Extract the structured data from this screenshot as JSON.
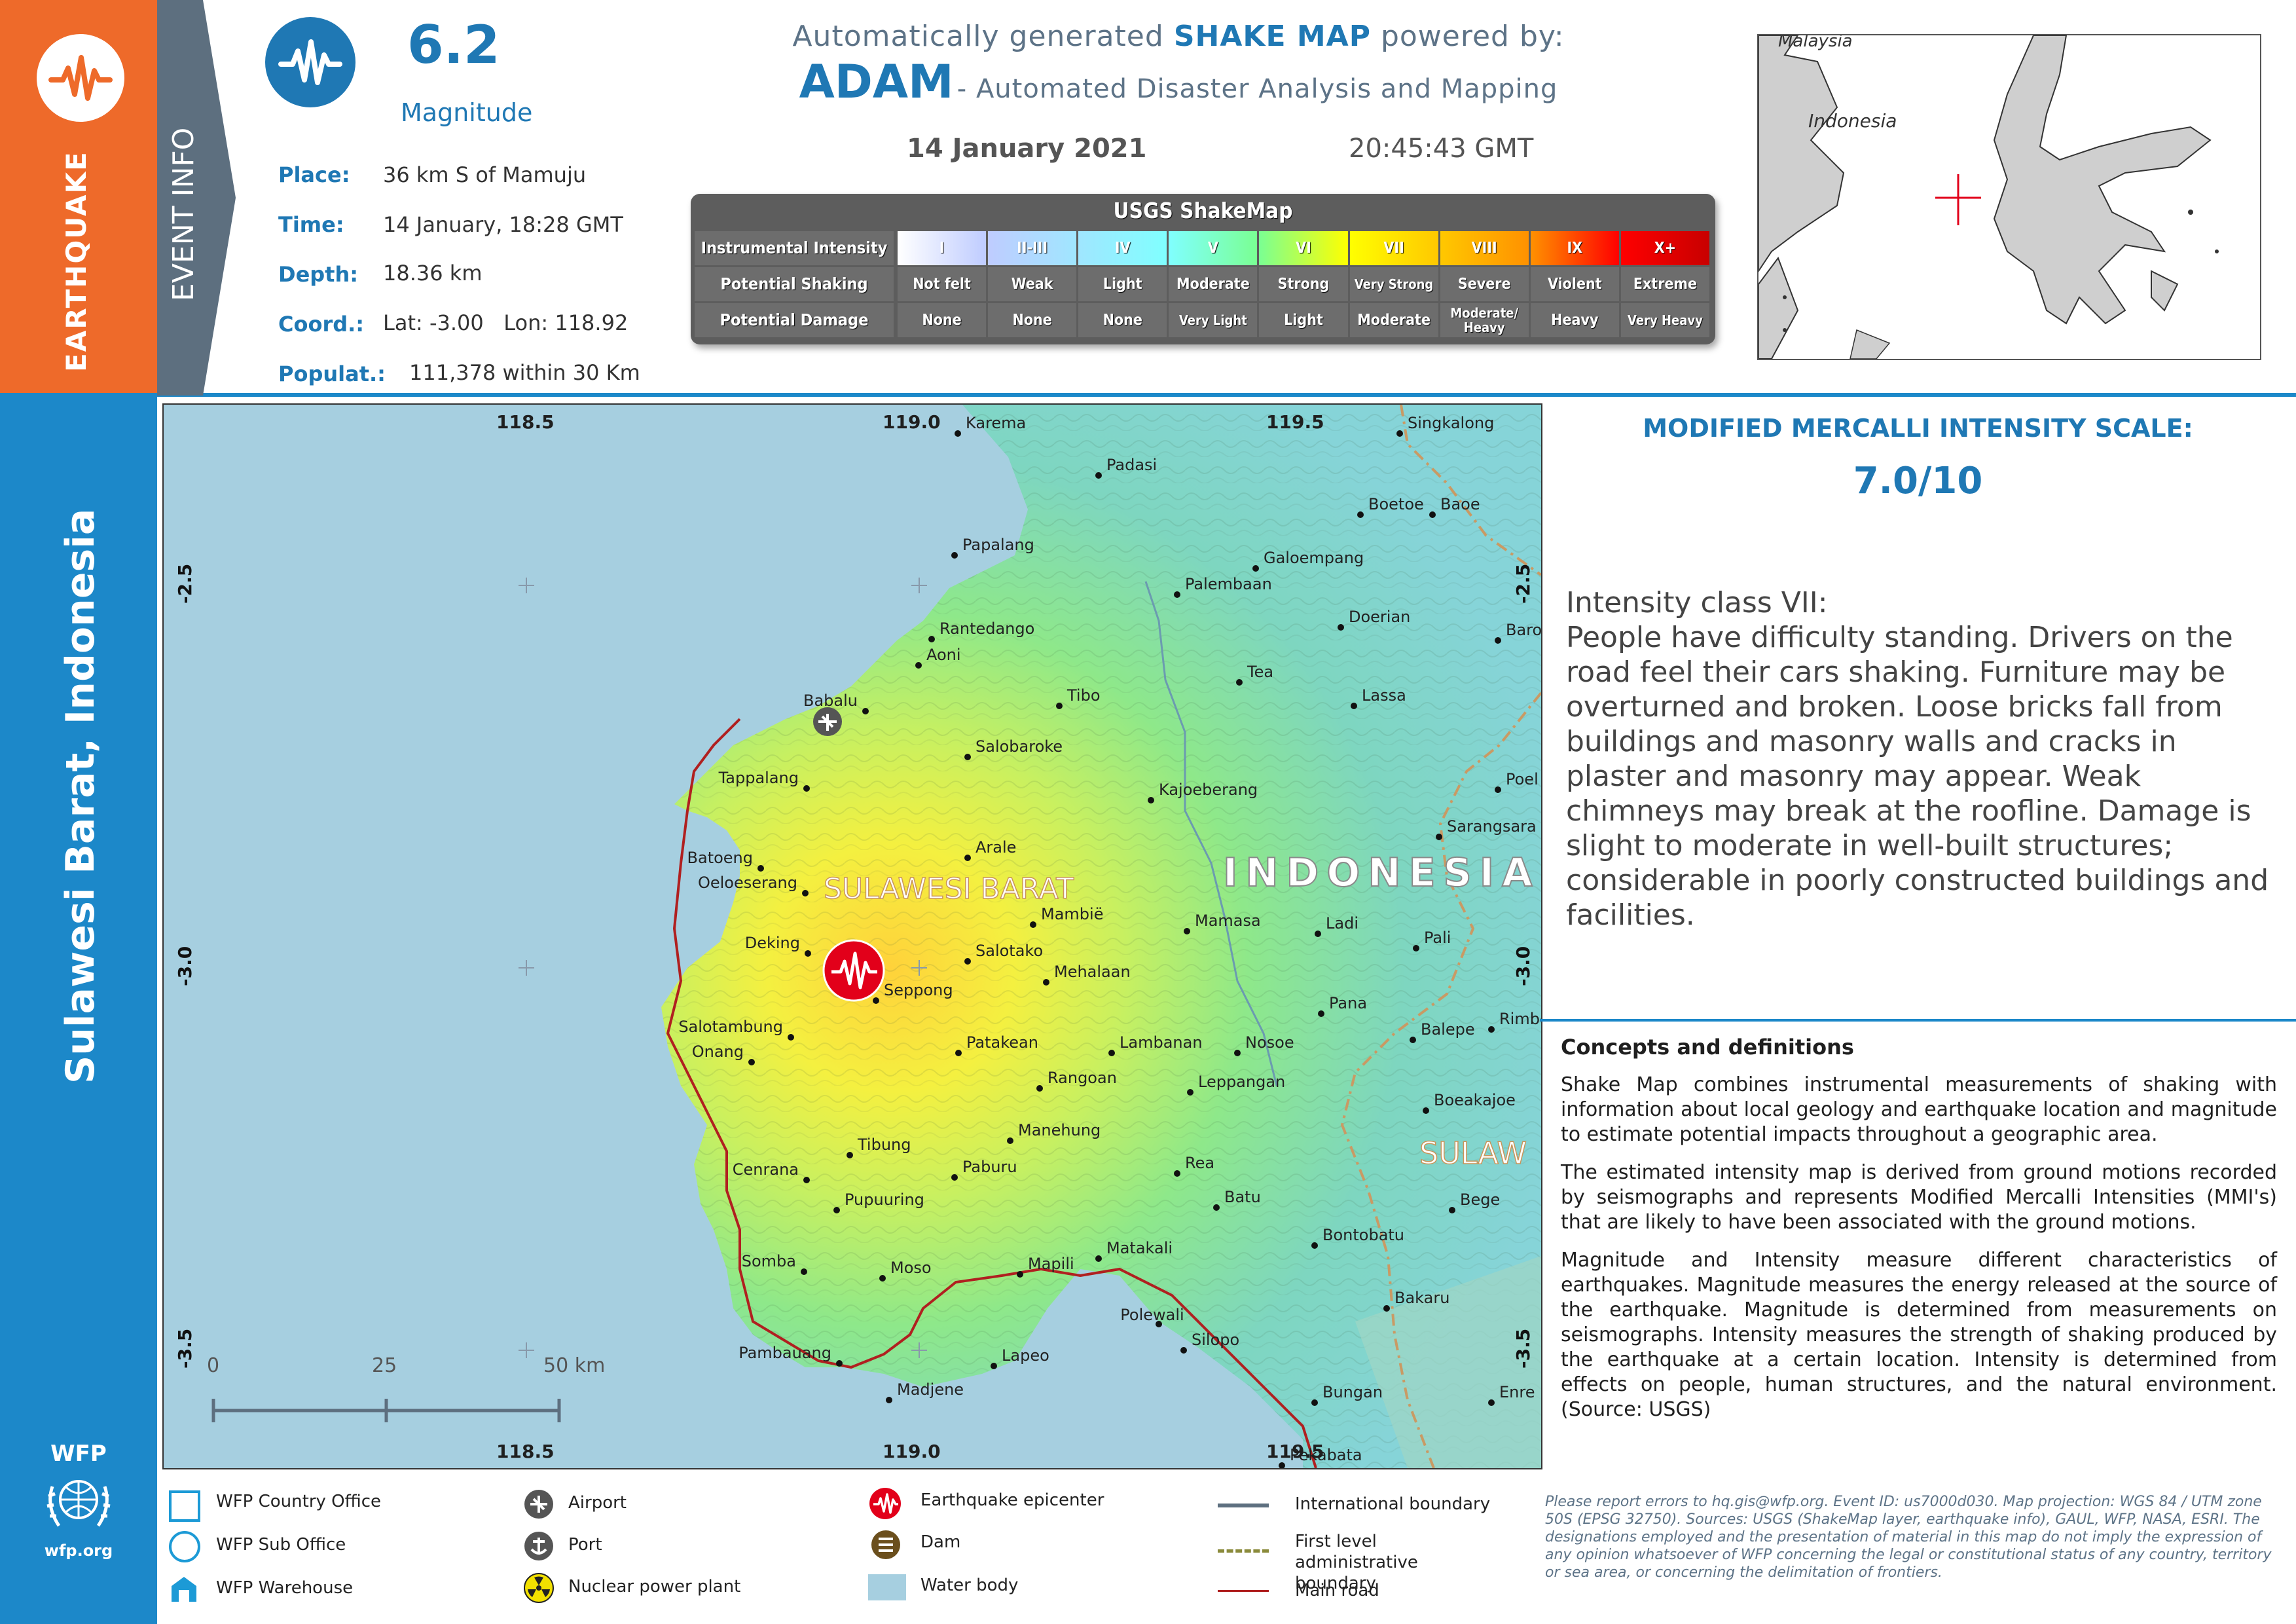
{
  "sidebar": {
    "hazard": "EARTHQUAKE",
    "region": "Sulawesi Barat, Indonesia",
    "org": "WFP",
    "org_url": "wfp.org"
  },
  "event": {
    "section_label": "EVENT INFO",
    "magnitude": "6.2",
    "magnitude_label": "Magnitude",
    "place_label": "Place:",
    "place": "36 km S of Mamuju",
    "time_label": "Time:",
    "time": "14 January, 18:28 GMT",
    "depth_label": "Depth:",
    "depth": "18.36 km",
    "coord_label": "Coord.:",
    "coord": "Lat: -3.00   Lon: 118.92",
    "pop_label": "Populat.:",
    "population": "111,378 within 30 Km"
  },
  "header": {
    "line1_pre": "Automatically generated",
    "line1_bold": "SHAKE MAP",
    "line1_post": "powered by:",
    "adam": "ADAM",
    "adam_desc": "- Automated Disaster Analysis and Mapping",
    "date": "14 January 2021",
    "time": "20:45:43 GMT"
  },
  "shakemap": {
    "title": "USGS ShakeMap",
    "row_labels": [
      "Instrumental Intensity",
      "Potential Shaking",
      "Potential Damage"
    ],
    "intensity": [
      "I",
      "II-III",
      "IV",
      "V",
      "VI",
      "VII",
      "VIII",
      "IX",
      "X+"
    ],
    "shaking": [
      "Not felt",
      "Weak",
      "Light",
      "Moderate",
      "Strong",
      "Very Strong",
      "Severe",
      "Violent",
      "Extreme"
    ],
    "damage": [
      "None",
      "None",
      "None",
      "Very Light",
      "Light",
      "Moderate",
      "Moderate/ Heavy",
      "Heavy",
      "Very Heavy"
    ],
    "colors": [
      "#ffffff",
      "#bfccff",
      "#a0e6ff",
      "#80ffff",
      "#7aff93",
      "#ffff00",
      "#ffc800",
      "#ff9100",
      "#ff0000",
      "#c80000"
    ]
  },
  "inset": {
    "labels": [
      "Malaysia",
      "Indonesia"
    ]
  },
  "map": {
    "lon_ticks": [
      "118.5",
      "119.0",
      "119.5"
    ],
    "lat_ticks": [
      "-2.5",
      "-3.0",
      "-3.5"
    ],
    "country_label": "INDONESIA",
    "province_label": "SULAWESI BARAT",
    "province_label_2": "SULAW",
    "towns": [
      "Karema",
      "Padasi",
      "Singkalong",
      "Boetoe",
      "Baoe",
      "Papalang",
      "Galoempang",
      "Palembaan",
      "Doerian",
      "Rantedango",
      "Aoni",
      "Tea",
      "Baro",
      "Tibo",
      "Lassa",
      "Babalu",
      "Salobaroke",
      "Tappalang",
      "Poel",
      "Kajoeberang",
      "Sarangsara",
      "Batoeng",
      "Arale",
      "Oeloeserang",
      "Mambië",
      "Mamasa",
      "Ladi",
      "Pali",
      "Deking",
      "Salotako",
      "Mehalaan",
      "Seppong",
      "Pana",
      "Rimbe",
      "Salotambung",
      "Onang",
      "Patakean",
      "Lambanan",
      "Nosoe",
      "Balepe",
      "Rangoan",
      "Leppangan",
      "Boeakajoe",
      "Tibung",
      "Manehung",
      "Cenrana",
      "Paburu",
      "Rea",
      "Pupuuring",
      "Batu",
      "Bege",
      "Bontobatu",
      "Matakali",
      "Somba",
      "Moso",
      "Mapili",
      "Bakaru",
      "Polewali",
      "Silopo",
      "Pambauang",
      "Lapeo",
      "Madjene",
      "Bungan",
      "Enre",
      "Pekabata"
    ],
    "scale_ticks": [
      "0",
      "25",
      "50 km"
    ]
  },
  "mmi": {
    "title": "MODIFIED MERCALLI INTENSITY SCALE:",
    "value": "7.0/10",
    "class_title": "Intensity class VII:",
    "description": "People have difficulty standing. Drivers on the road feel their cars shaking. Furniture may be overturned and broken. Loose bricks fall from buildings and masonry walls and cracks in plaster and masonry may appear. Weak chimneys may break at the roofline. Damage is slight to moderate in well-built structures; considerable in poorly constructed buildings and facilities."
  },
  "concepts": {
    "title": "Concepts and definitions",
    "p1": "Shake Map combines instrumental measurements of shaking with information about local geology and earthquake location and magnitude to estimate potential impacts throughout a geographic area.",
    "p2": "The estimated intensity map is derived from ground motions recorded by seismographs and represents Modified Mercalli Intensities (MMI's) that are likely to have been associated with the ground motions.",
    "p3": "Magnitude and Intensity measure different characteristics of earthquakes. Magnitude measures the energy released at the source of the earthquake. Magnitude is determined from measurements on seismographs. Intensity measures the strength of shaking produced by the earthquake at a certain location. Intensity is determined from effects on people, human structures, and the natural environment. (Source: USGS)"
  },
  "legend": {
    "country_office": "WFP Country Office",
    "sub_office": "WFP Sub Office",
    "warehouse": "WFP Warehouse",
    "airport": "Airport",
    "port": "Port",
    "nuclear": "Nuclear power plant",
    "epicenter": "Earthquake epicenter",
    "dam": "Dam",
    "water": "Water body",
    "intl_boundary": "International boundary",
    "admin_boundary": "First level administrative boundary",
    "road": "Main road"
  },
  "footer": {
    "disclaimer": "Please report errors to hq.gis@wfp.org. Event ID: us7000d030. Map projection: WGS 84 / UTM zone 50S (EPSG 32750). Sources: USGS (ShakeMap layer, earthquake info), GAUL, WFP, NASA, ESRI. The designations employed and the presentation of material in this map do not imply the expression of any opinion whatsoever of WFP concerning the legal or constitutional status of any country, territory or sea area, or concerning the delimitation of frontiers."
  }
}
